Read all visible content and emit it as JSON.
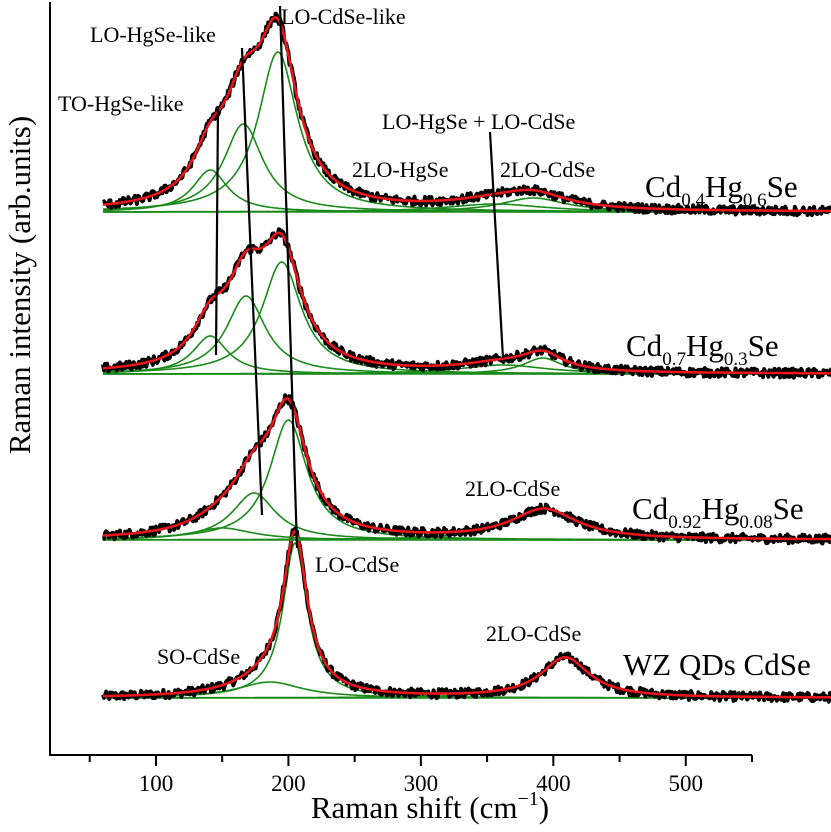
{
  "chart_data": {
    "type": "line",
    "xlabel": "Raman shift (cm",
    "xlabel_sup": "−1",
    "xlabel_tail": ")",
    "ylabel": "Raman intensity (arb.units)",
    "xlim": [
      20,
      550
    ],
    "x_ticks": [
      100,
      200,
      300,
      400,
      500
    ],
    "x_tick_labels": [
      "100",
      "200",
      "300",
      "400",
      "500"
    ],
    "x_minor_ticks": [
      50,
      150,
      250,
      350,
      450,
      550
    ],
    "colors": {
      "data": "#000000",
      "fit": "#e8151b",
      "components": "#1a8a1a",
      "guide": "#000000"
    },
    "spectra": [
      {
        "sample": "WZ QDs CdSe",
        "label_parts": [
          {
            "t": "WZ QDs CdSe",
            "sub": false
          }
        ],
        "peaks": [
          {
            "name": "SO-CdSe",
            "center": 186,
            "amplitude": 0.16,
            "width": 30
          },
          {
            "name": "LO-CdSe",
            "center": 205,
            "amplitude": 1.55,
            "width": 11
          },
          {
            "name": "2LO-CdSe",
            "center": 409,
            "amplitude": 0.4,
            "width": 22
          }
        ]
      },
      {
        "sample": "Cd0.92Hg0.08Se",
        "label_parts": [
          {
            "t": "Cd",
            "sub": false
          },
          {
            "t": "0.92",
            "sub": true
          },
          {
            "t": "Hg",
            "sub": false
          },
          {
            "t": "0.08",
            "sub": true
          },
          {
            "t": "Se",
            "sub": false
          }
        ],
        "peaks": [
          {
            "name": "TO-HgSe-like",
            "center": 150,
            "amplitude": 0.12,
            "width": 28
          },
          {
            "name": "LO-HgSe-like",
            "center": 174,
            "amplitude": 0.47,
            "width": 20
          },
          {
            "name": "LO-CdSe-like",
            "center": 200,
            "amplitude": 1.2,
            "width": 17
          },
          {
            "name": "2LO-CdSe",
            "center": 393,
            "amplitude": 0.3,
            "width": 30
          }
        ]
      },
      {
        "sample": "Cd0.7Hg0.3Se",
        "label_parts": [
          {
            "t": "Cd",
            "sub": false
          },
          {
            "t": "0.7",
            "sub": true
          },
          {
            "t": "Hg",
            "sub": false
          },
          {
            "t": "0.3",
            "sub": true
          },
          {
            "t": "Se",
            "sub": false
          }
        ],
        "peaks": [
          {
            "name": "TO-HgSe-like",
            "center": 141,
            "amplitude": 0.38,
            "width": 16
          },
          {
            "name": "LO-HgSe-like",
            "center": 168,
            "amplitude": 0.78,
            "width": 18
          },
          {
            "name": "LO-CdSe-like",
            "center": 195,
            "amplitude": 1.12,
            "width": 18
          },
          {
            "name": "LO-HgSe + LO-CdSe",
            "center": 362,
            "amplitude": 0.09,
            "width": 40
          },
          {
            "name": "2LO-CdSe",
            "center": 392,
            "amplitude": 0.16,
            "width": 18
          }
        ]
      },
      {
        "sample": "Cd0.4Hg0.6Se",
        "label_parts": [
          {
            "t": "Cd",
            "sub": false
          },
          {
            "t": "0.4",
            "sub": true
          },
          {
            "t": "Hg",
            "sub": false
          },
          {
            "t": "0.6",
            "sub": true
          },
          {
            "t": "Se",
            "sub": false
          }
        ],
        "peaks": [
          {
            "name": "TO-HgSe-like",
            "center": 141,
            "amplitude": 0.42,
            "width": 16
          },
          {
            "name": "LO-HgSe-like",
            "center": 166,
            "amplitude": 0.88,
            "width": 18
          },
          {
            "name": "LO-CdSe-like",
            "center": 192,
            "amplitude": 1.6,
            "width": 18
          },
          {
            "name": "2LO-HgSe",
            "center": 356,
            "amplitude": 0.08,
            "width": 45
          },
          {
            "name": "2LO-CdSe",
            "center": 385,
            "amplitude": 0.14,
            "width": 30
          }
        ]
      }
    ],
    "annotations": {
      "wz_so": "SO-CdSe",
      "wz_lo": "LO-CdSe",
      "wz_2lo": "2LO-CdSe",
      "cd92_2lo": "2LO-CdSe",
      "cd4_2lo_hgse": "2LO-HgSe",
      "cd4_2lo_cdse": "2LO-CdSe",
      "lo_hgse_lo_cdse": "LO-HgSe + LO-CdSe",
      "to_hgse_like": "TO-HgSe-like",
      "lo_hgse_like": "LO-HgSe-like",
      "lo_cdse_like": "LO-CdSe-like"
    }
  }
}
